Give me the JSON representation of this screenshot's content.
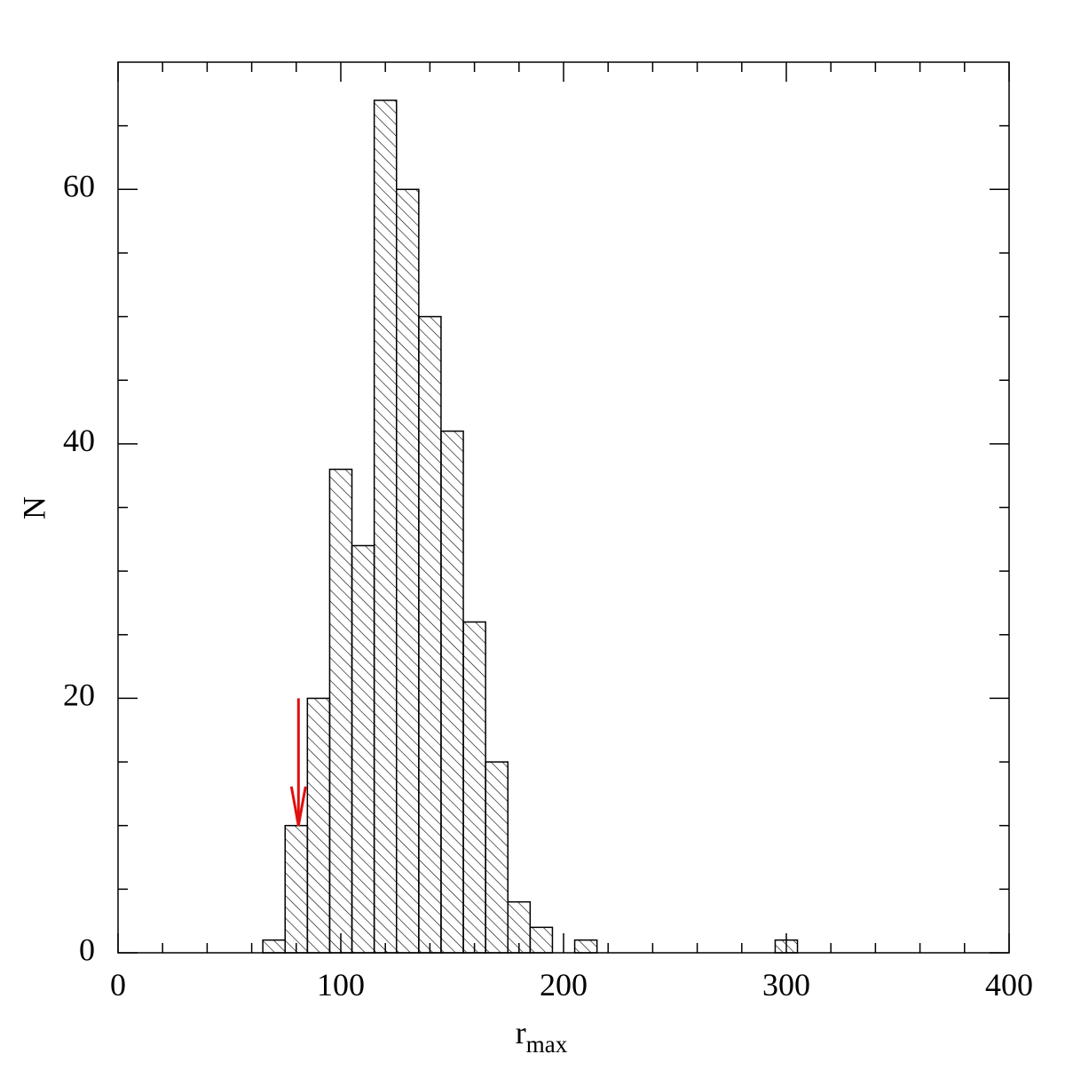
{
  "chart_data": {
    "type": "histogram",
    "xlabel": {
      "text": "r",
      "subscript": "max"
    },
    "ylabel": "N",
    "bins": [
      65,
      75,
      85,
      95,
      105,
      115,
      125,
      135,
      145,
      155,
      165,
      175,
      185,
      195,
      205,
      215,
      225,
      235,
      245,
      255,
      265,
      275,
      285,
      295,
      305
    ],
    "counts": [
      1,
      10,
      20,
      38,
      32,
      67,
      60,
      50,
      41,
      26,
      15,
      4,
      2,
      0,
      1,
      0,
      0,
      0,
      0,
      0,
      0,
      0,
      0,
      1
    ],
    "color": "#000000",
    "hatch": true,
    "xlim": [
      0,
      400
    ],
    "xticks": [
      0,
      100,
      200,
      300,
      400
    ],
    "xminorticks": [
      20,
      40,
      60,
      80,
      120,
      140,
      160,
      180,
      220,
      240,
      260,
      280,
      320,
      340,
      360,
      380
    ],
    "ylim": [
      0,
      70
    ],
    "yticks": [
      0,
      20,
      40,
      60
    ],
    "yminorticks": [
      5,
      10,
      15,
      25,
      30,
      35,
      45,
      50,
      55,
      65
    ],
    "annotation": {
      "x": 81,
      "y_start": 20,
      "y_end": 10,
      "color": "#e01010"
    }
  }
}
